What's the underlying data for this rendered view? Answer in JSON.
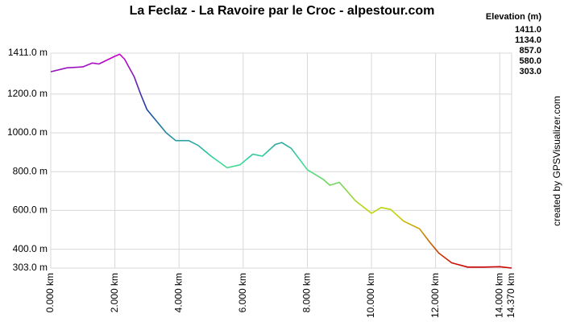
{
  "chart_data": {
    "type": "line",
    "title": "La Feclaz - La Ravoire par le Croc - alpestour.com",
    "credit": "created by GPSVisualizer.com",
    "x": [
      0,
      0.5,
      1.0,
      1.3,
      1.5,
      2.0,
      2.15,
      2.3,
      2.6,
      2.8,
      3.0,
      3.3,
      3.6,
      3.9,
      4.3,
      4.6,
      5.0,
      5.5,
      5.9,
      6.3,
      6.6,
      7.0,
      7.2,
      7.5,
      8.0,
      8.5,
      8.7,
      9.0,
      9.5,
      10.0,
      10.3,
      10.6,
      11.0,
      11.5,
      11.8,
      12.1,
      12.5,
      13.0,
      13.5,
      14.0,
      14.37
    ],
    "values": [
      1315,
      1335,
      1340,
      1360,
      1355,
      1395,
      1405,
      1380,
      1290,
      1200,
      1120,
      1060,
      1000,
      960,
      960,
      935,
      880,
      820,
      835,
      890,
      880,
      940,
      950,
      920,
      810,
      760,
      730,
      745,
      650,
      585,
      615,
      605,
      545,
      505,
      440,
      380,
      330,
      308,
      308,
      310,
      303
    ],
    "xlim": [
      0,
      14.37
    ],
    "ylim": [
      303,
      1411
    ],
    "xticks": [
      {
        "value": 0,
        "label": "0.000 km"
      },
      {
        "value": 2,
        "label": "2.000 km"
      },
      {
        "value": 4,
        "label": "4.000 km"
      },
      {
        "value": 6,
        "label": "6.000 km"
      },
      {
        "value": 8,
        "label": "8.000 km"
      },
      {
        "value": 10,
        "label": "10.000 km"
      },
      {
        "value": 12,
        "label": "12.000 km"
      },
      {
        "value": 14,
        "label": "14.000 km"
      },
      {
        "value": 14.37,
        "label": "14.370 km"
      }
    ],
    "yticks": [
      {
        "value": 303,
        "label": "303.0 m"
      },
      {
        "value": 400,
        "label": "400.0 m"
      },
      {
        "value": 600,
        "label": "600.0 m"
      },
      {
        "value": 800,
        "label": "800.0 m"
      },
      {
        "value": 1000,
        "label": "1000.0 m"
      },
      {
        "value": 1200,
        "label": "1200.0 m"
      },
      {
        "value": 1411,
        "label": "1411.0 m"
      }
    ],
    "grid": true,
    "elevation_scale": {
      "title": "Elevation (m)",
      "stops": [
        {
          "value": 1411,
          "label": "1411.0",
          "color": "#cc00cc"
        },
        {
          "value": 1134,
          "label": "1134.0",
          "color": "#1a3fa0"
        },
        {
          "value": 857,
          "label": "857.0",
          "color": "#33d9a0"
        },
        {
          "value": 580,
          "label": "580.0",
          "color": "#c8d400"
        },
        {
          "value": 303,
          "label": "303.0",
          "color": "#cc0000"
        }
      ]
    }
  }
}
